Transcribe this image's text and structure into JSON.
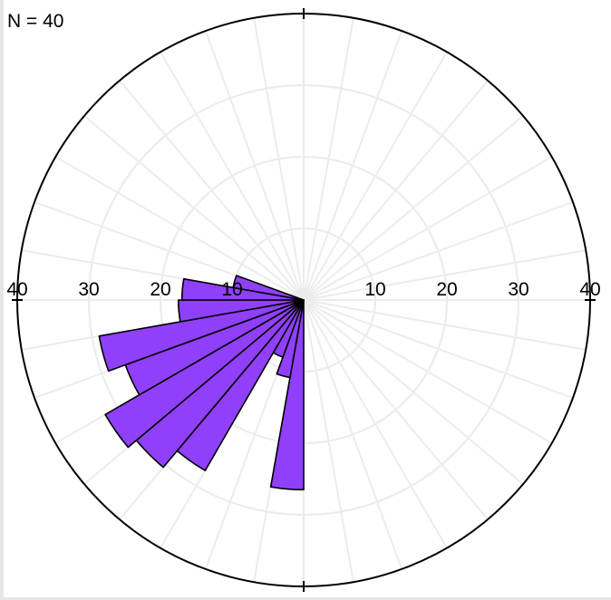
{
  "count_label": "N = 40",
  "colors": {
    "petal_fill": "#9040FA",
    "petal_stroke": "#000000",
    "grid": "#ececec",
    "outer_circle": "#000000"
  },
  "chart_data": {
    "type": "rose",
    "title": "",
    "sample_count": 40,
    "radial_max": 40,
    "radial_ticks": [
      10,
      20,
      30,
      40
    ],
    "tick_labels_left": [
      "40",
      "30",
      "20",
      "10"
    ],
    "tick_labels_right": [
      "10",
      "20",
      "30",
      "40"
    ],
    "sector_width_deg": 10,
    "angle_convention": "compass degrees, 0 = north (up), clockwise",
    "petals": [
      {
        "start_deg": 180,
        "end_deg": 190,
        "value": 26.5
      },
      {
        "start_deg": 190,
        "end_deg": 200,
        "value": 11.0
      },
      {
        "start_deg": 200,
        "end_deg": 210,
        "value": 8.5
      },
      {
        "start_deg": 210,
        "end_deg": 220,
        "value": 27.5
      },
      {
        "start_deg": 220,
        "end_deg": 230,
        "value": 30.5
      },
      {
        "start_deg": 230,
        "end_deg": 240,
        "value": 32.0
      },
      {
        "start_deg": 240,
        "end_deg": 250,
        "value": 26.5
      },
      {
        "start_deg": 250,
        "end_deg": 260,
        "value": 29.0
      },
      {
        "start_deg": 260,
        "end_deg": 270,
        "value": 17.5
      },
      {
        "start_deg": 270,
        "end_deg": 280,
        "value": 17.0
      },
      {
        "start_deg": 280,
        "end_deg": 290,
        "value": 10.0
      }
    ],
    "grid": true
  }
}
